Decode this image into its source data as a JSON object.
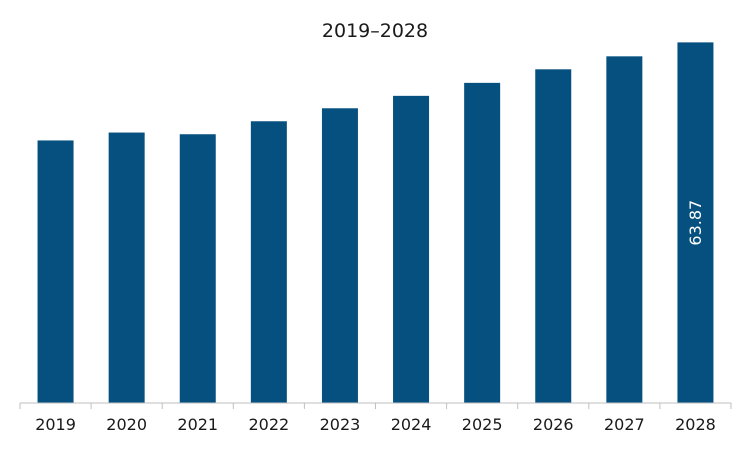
{
  "chart_data": {
    "type": "bar",
    "title": "2019–2028",
    "xlabel": "",
    "ylabel": "",
    "categories": [
      "2019",
      "2020",
      "2021",
      "2022",
      "2023",
      "2024",
      "2025",
      "2026",
      "2027",
      "2028"
    ],
    "series": [
      {
        "values": [
          46.5,
          47.9,
          47.6,
          49.9,
          52.2,
          54.4,
          56.7,
          59.1,
          61.4,
          63.87
        ],
        "color": "#06507f",
        "data_labels": [
          "",
          "",
          "",
          "",
          "",
          "",
          "",
          "",
          "",
          "63.87"
        ]
      }
    ],
    "ylim": [
      0,
      65
    ],
    "grid": false,
    "legend": "none"
  }
}
